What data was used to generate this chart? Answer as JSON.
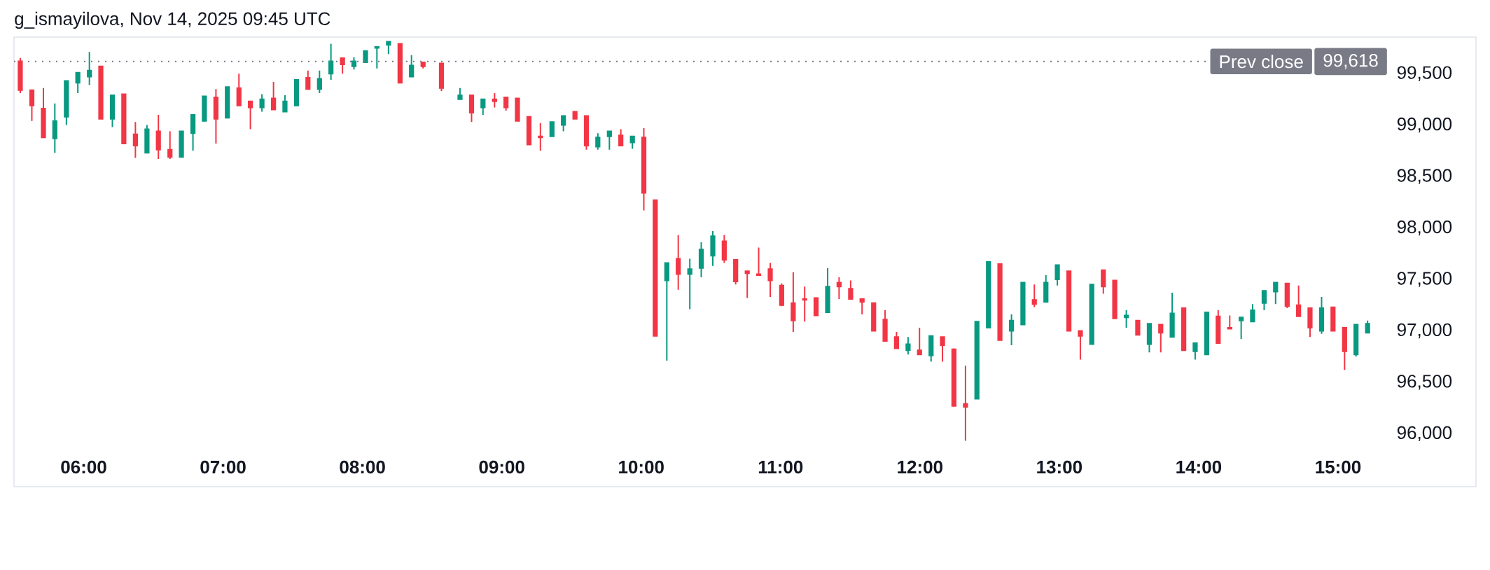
{
  "chart_data": {
    "type": "candlestick",
    "title": "g_ismayilova, Nov 14, 2025 09:45 UTC",
    "x": [
      5.545,
      5.628,
      5.711,
      5.793,
      5.876,
      5.958,
      6.041,
      6.123,
      6.206,
      6.288,
      6.371,
      6.454,
      6.536,
      6.619,
      6.701,
      6.784,
      6.866,
      6.949,
      7.031,
      7.114,
      7.196,
      7.279,
      7.362,
      7.444,
      7.527,
      7.609,
      7.692,
      7.774,
      7.857,
      7.939,
      8.022,
      8.104,
      8.187,
      8.27,
      8.352,
      8.435,
      8.567,
      8.7,
      8.783,
      8.865,
      8.948,
      9.03,
      9.112,
      9.195,
      9.277,
      9.36,
      9.442,
      9.525,
      9.607,
      9.689,
      9.772,
      9.854,
      9.937,
      10.019,
      10.101,
      10.184,
      10.266,
      10.349,
      10.431,
      10.514,
      10.596,
      10.678,
      10.761,
      10.843,
      10.926,
      11.008,
      11.091,
      11.173,
      11.255,
      11.338,
      11.42,
      11.503,
      11.585,
      11.668,
      11.75,
      11.832,
      11.915,
      11.997,
      12.08,
      12.162,
      12.244,
      12.327,
      12.409,
      12.492,
      12.574,
      12.657,
      12.739,
      12.821,
      12.904,
      12.986,
      13.069,
      13.151,
      13.233,
      13.316,
      13.398,
      13.481,
      13.563,
      13.646,
      13.728,
      13.81,
      13.893,
      13.975,
      14.058,
      14.14,
      14.223,
      14.305,
      14.387,
      14.47,
      14.552,
      14.635,
      14.717,
      14.799,
      14.882,
      14.964,
      15.047,
      15.129,
      15.212
    ],
    "ohlc": [
      [
        99620,
        99650,
        99310,
        99340
      ],
      [
        99340,
        99340,
        99040,
        99190
      ],
      [
        99160,
        99360,
        98880,
        98880
      ],
      [
        98870,
        99210,
        98730,
        99040
      ],
      [
        99080,
        99430,
        99000,
        99430
      ],
      [
        99410,
        99510,
        99310,
        99510
      ],
      [
        99470,
        99710,
        99390,
        99530
      ],
      [
        99570,
        99570,
        99060,
        99060
      ],
      [
        99060,
        99290,
        98980,
        99290
      ],
      [
        99300,
        99300,
        98820,
        98820
      ],
      [
        98910,
        99030,
        98680,
        98800
      ],
      [
        98730,
        99000,
        98730,
        98960
      ],
      [
        98940,
        99100,
        98670,
        98760
      ],
      [
        98760,
        98940,
        98670,
        98690
      ],
      [
        98690,
        98940,
        98690,
        98940
      ],
      [
        98920,
        99100,
        98750,
        99100
      ],
      [
        99040,
        99280,
        99040,
        99280
      ],
      [
        99270,
        99350,
        98820,
        99060
      ],
      [
        99070,
        99370,
        99070,
        99370
      ],
      [
        99360,
        99500,
        99190,
        99190
      ],
      [
        99230,
        99230,
        98960,
        99170
      ],
      [
        99170,
        99300,
        99130,
        99250
      ],
      [
        99260,
        99420,
        99150,
        99150
      ],
      [
        99130,
        99290,
        99130,
        99230
      ],
      [
        99190,
        99440,
        99190,
        99440
      ],
      [
        99460,
        99530,
        99350,
        99350
      ],
      [
        99350,
        99530,
        99310,
        99450
      ],
      [
        99500,
        99790,
        99440,
        99620
      ],
      [
        99650,
        99650,
        99500,
        99590
      ],
      [
        99570,
        99660,
        99540,
        99620
      ],
      [
        99610,
        99720,
        99610,
        99720
      ],
      [
        99750,
        99760,
        99550,
        99760
      ],
      [
        99780,
        99810,
        99690,
        99810
      ],
      [
        99790,
        99790,
        99410,
        99410
      ],
      [
        99470,
        99680,
        99470,
        99580
      ],
      [
        99610,
        99610,
        99550,
        99570
      ],
      [
        99600,
        99600,
        99330,
        99360
      ],
      [
        99250,
        99360,
        99250,
        99290
      ],
      [
        99290,
        99290,
        99030,
        99120
      ],
      [
        99170,
        99250,
        99100,
        99250
      ],
      [
        99250,
        99310,
        99170,
        99230
      ],
      [
        99270,
        99270,
        99140,
        99170
      ],
      [
        99260,
        99260,
        99040,
        99040
      ],
      [
        99080,
        99080,
        98810,
        98810
      ],
      [
        98890,
        99020,
        98750,
        98880
      ],
      [
        98890,
        99030,
        98890,
        99030
      ],
      [
        99000,
        99090,
        98940,
        99090
      ],
      [
        99130,
        99130,
        99060,
        99060
      ],
      [
        99090,
        99090,
        98760,
        98800
      ],
      [
        98790,
        98920,
        98760,
        98880
      ],
      [
        98890,
        98940,
        98760,
        98940
      ],
      [
        98900,
        98960,
        98800,
        98800
      ],
      [
        98830,
        98890,
        98770,
        98890
      ],
      [
        98880,
        98970,
        98170,
        98340
      ],
      [
        98270,
        98270,
        96950,
        96950
      ],
      [
        97490,
        97660,
        96710,
        97660
      ],
      [
        97700,
        97930,
        97400,
        97550
      ],
      [
        97550,
        97700,
        97210,
        97600
      ],
      [
        97610,
        97860,
        97520,
        97790
      ],
      [
        97730,
        97970,
        97630,
        97920
      ],
      [
        97870,
        97930,
        97660,
        97690
      ],
      [
        97690,
        97690,
        97450,
        97480
      ],
      [
        97580,
        97580,
        97320,
        97560
      ],
      [
        97550,
        97810,
        97540,
        97540
      ],
      [
        97600,
        97660,
        97330,
        97490
      ],
      [
        97440,
        97460,
        97240,
        97250
      ],
      [
        97270,
        97570,
        96990,
        97100
      ],
      [
        97310,
        97430,
        97090,
        97300
      ],
      [
        97320,
        97320,
        97150,
        97150
      ],
      [
        97180,
        97610,
        97180,
        97430
      ],
      [
        97470,
        97520,
        97310,
        97430
      ],
      [
        97410,
        97490,
        97310,
        97310
      ],
      [
        97310,
        97310,
        97160,
        97280
      ],
      [
        97270,
        97270,
        97000,
        97000
      ],
      [
        97110,
        97200,
        96900,
        96900
      ],
      [
        96940,
        96990,
        96830,
        96830
      ],
      [
        96810,
        96940,
        96770,
        96870
      ],
      [
        96810,
        97030,
        96770,
        96770
      ],
      [
        96760,
        96950,
        96700,
        96950
      ],
      [
        96940,
        96940,
        96700,
        96860
      ],
      [
        96820,
        96830,
        96270,
        96270
      ],
      [
        96290,
        96660,
        95930,
        96260
      ],
      [
        96340,
        97090,
        96340,
        97090
      ],
      [
        97030,
        97670,
        97030,
        97670
      ],
      [
        97650,
        97650,
        96910,
        96910
      ],
      [
        97000,
        97160,
        96860,
        97100
      ],
      [
        97060,
        97470,
        97060,
        97470
      ],
      [
        97300,
        97450,
        97230,
        97260
      ],
      [
        97280,
        97540,
        97280,
        97470
      ],
      [
        97500,
        97640,
        97440,
        97640
      ],
      [
        97580,
        97580,
        97000,
        97000
      ],
      [
        97000,
        97000,
        96720,
        96950
      ],
      [
        96870,
        97450,
        96870,
        97450
      ],
      [
        97590,
        97590,
        97360,
        97430
      ],
      [
        97490,
        97490,
        97120,
        97120
      ],
      [
        97130,
        97200,
        97030,
        97150
      ],
      [
        97100,
        97100,
        96960,
        96960
      ],
      [
        96870,
        97070,
        96790,
        97070
      ],
      [
        97060,
        97060,
        96790,
        96980
      ],
      [
        96940,
        97370,
        96940,
        97170
      ],
      [
        97220,
        97220,
        96810,
        96810
      ],
      [
        96800,
        96880,
        96720,
        96880
      ],
      [
        96770,
        97180,
        96770,
        97180
      ],
      [
        97140,
        97200,
        96880,
        96880
      ],
      [
        97030,
        97150,
        97020,
        97020
      ],
      [
        97100,
        97130,
        96920,
        97130
      ],
      [
        97090,
        97260,
        97090,
        97200
      ],
      [
        97270,
        97390,
        97200,
        97390
      ],
      [
        97380,
        97470,
        97260,
        97470
      ],
      [
        97460,
        97460,
        97220,
        97240
      ],
      [
        97250,
        97440,
        97140,
        97140
      ],
      [
        97220,
        97220,
        96940,
        97030
      ],
      [
        97000,
        97330,
        96970,
        97220
      ],
      [
        97230,
        97230,
        97000,
        97000
      ],
      [
        97030,
        97030,
        96620,
        96800
      ],
      [
        96770,
        97060,
        96750,
        97060
      ],
      [
        96980,
        97100,
        96980,
        97070
      ]
    ],
    "colors": [
      "#f23645",
      "#f23645",
      "#f23645",
      "#089981",
      "#089981",
      "#089981",
      "#089981",
      "#f23645",
      "#089981",
      "#f23645",
      "#f23645",
      "#089981",
      "#f23645",
      "#f23645",
      "#089981",
      "#089981",
      "#089981",
      "#f23645",
      "#089981",
      "#f23645",
      "#f23645",
      "#089981",
      "#f23645",
      "#089981",
      "#089981",
      "#f23645",
      "#089981",
      "#089981",
      "#f23645",
      "#089981",
      "#089981",
      "#089981",
      "#089981",
      "#f23645",
      "#089981",
      "#f23645",
      "#f23645",
      "#089981",
      "#f23645",
      "#089981",
      "#f23645",
      "#f23645",
      "#f23645",
      "#f23645",
      "#f23645",
      "#089981",
      "#089981",
      "#f23645",
      "#f23645",
      "#089981",
      "#089981",
      "#f23645",
      "#089981",
      "#f23645",
      "#f23645",
      "#089981",
      "#f23645",
      "#089981",
      "#089981",
      "#089981",
      "#f23645",
      "#f23645",
      "#f23645",
      "#f23645",
      "#f23645",
      "#f23645",
      "#f23645",
      "#f23645",
      "#f23645",
      "#089981",
      "#f23645",
      "#f23645",
      "#f23645",
      "#f23645",
      "#f23645",
      "#f23645",
      "#089981",
      "#f23645",
      "#089981",
      "#f23645",
      "#f23645",
      "#f23645",
      "#089981",
      "#089981",
      "#f23645",
      "#089981",
      "#089981",
      "#f23645",
      "#089981",
      "#089981",
      "#f23645",
      "#f23645",
      "#089981",
      "#f23645",
      "#f23645",
      "#089981",
      "#f23645",
      "#089981",
      "#f23645",
      "#089981",
      "#f23645",
      "#089981",
      "#089981",
      "#f23645",
      "#f23645",
      "#089981",
      "#089981",
      "#089981",
      "#089981",
      "#f23645",
      "#f23645",
      "#f23645",
      "#089981",
      "#f23645",
      "#f23645",
      "#089981",
      "#089981"
    ],
    "xlim": [
      5.5,
      15.99
    ],
    "ylim": [
      95485,
      99855
    ],
    "xticks": [
      {
        "value": 6,
        "label": "06:00"
      },
      {
        "value": 7,
        "label": "07:00"
      },
      {
        "value": 8,
        "label": "08:00"
      },
      {
        "value": 9,
        "label": "09:00"
      },
      {
        "value": 10,
        "label": "10:00"
      },
      {
        "value": 11,
        "label": "11:00"
      },
      {
        "value": 12,
        "label": "12:00"
      },
      {
        "value": 13,
        "label": "13:00"
      },
      {
        "value": 14,
        "label": "14:00"
      },
      {
        "value": 15,
        "label": "15:00"
      }
    ],
    "yticks": [
      {
        "value": 96000,
        "label": "96,000"
      },
      {
        "value": 96500,
        "label": "96,500"
      },
      {
        "value": 97000,
        "label": "97,000"
      },
      {
        "value": 97500,
        "label": "97,500"
      },
      {
        "value": 98000,
        "label": "98,000"
      },
      {
        "value": 98500,
        "label": "98,500"
      },
      {
        "value": 99000,
        "label": "99,000"
      },
      {
        "value": 99500,
        "label": "99,500"
      }
    ],
    "ref_lines": [
      {
        "axis": "y",
        "value": 99618,
        "label": "Prev close",
        "color": "#787b86",
        "line_style": "dotted"
      }
    ],
    "annotations": [
      {
        "text": "99,618",
        "y": 99618
      }
    ]
  }
}
